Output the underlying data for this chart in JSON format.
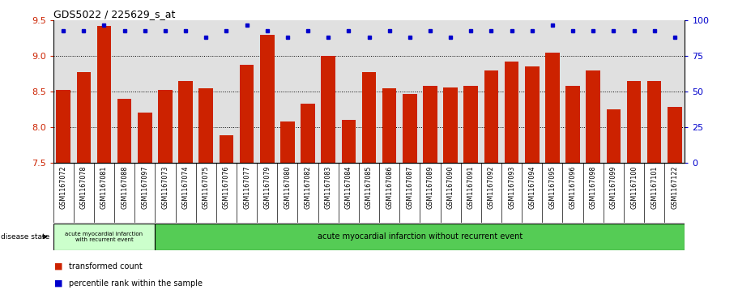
{
  "title": "GDS5022 / 225629_s_at",
  "samples": [
    "GSM1167072",
    "GSM1167078",
    "GSM1167081",
    "GSM1167088",
    "GSM1167097",
    "GSM1167073",
    "GSM1167074",
    "GSM1167075",
    "GSM1167076",
    "GSM1167077",
    "GSM1167079",
    "GSM1167080",
    "GSM1167082",
    "GSM1167083",
    "GSM1167084",
    "GSM1167085",
    "GSM1167086",
    "GSM1167087",
    "GSM1167089",
    "GSM1167090",
    "GSM1167091",
    "GSM1167092",
    "GSM1167093",
    "GSM1167094",
    "GSM1167095",
    "GSM1167096",
    "GSM1167098",
    "GSM1167099",
    "GSM1167100",
    "GSM1167101",
    "GSM1167122"
  ],
  "bar_values": [
    8.52,
    8.78,
    9.42,
    8.4,
    8.2,
    8.52,
    8.65,
    8.55,
    7.88,
    8.88,
    9.3,
    8.08,
    8.33,
    9.0,
    8.1,
    8.78,
    8.55,
    8.47,
    8.58,
    8.56,
    8.58,
    8.8,
    8.92,
    8.85,
    9.05,
    8.58,
    8.8,
    8.25,
    8.65,
    8.65,
    8.28
  ],
  "percentile_values": [
    93,
    93,
    97,
    93,
    93,
    93,
    93,
    88,
    93,
    97,
    93,
    88,
    93,
    88,
    93,
    88,
    93,
    88,
    93,
    88,
    93,
    93,
    93,
    93,
    97,
    93,
    93,
    93,
    93,
    93,
    88
  ],
  "bar_color": "#cc2200",
  "dot_color": "#0000cc",
  "ylim_left": [
    7.5,
    9.5
  ],
  "ylim_right": [
    0,
    100
  ],
  "yticks_left": [
    7.5,
    8.0,
    8.5,
    9.0,
    9.5
  ],
  "yticks_right": [
    0,
    25,
    50,
    75,
    100
  ],
  "grid_values": [
    8.0,
    8.5,
    9.0
  ],
  "plot_bg": "#e0e0e0",
  "xtick_bg": "#c8c8c8",
  "disease_group1_label": "acute myocardial infarction\nwith recurrent event",
  "disease_group2_label": "acute myocardial infarction without recurrent event",
  "disease_group1_count": 5,
  "disease_state_label": "disease state",
  "legend_bar_label": "transformed count",
  "legend_dot_label": "percentile rank within the sample",
  "group1_color": "#ccffcc",
  "group2_color": "#55cc55",
  "fig_width": 9.11,
  "fig_height": 3.63,
  "dpi": 100
}
